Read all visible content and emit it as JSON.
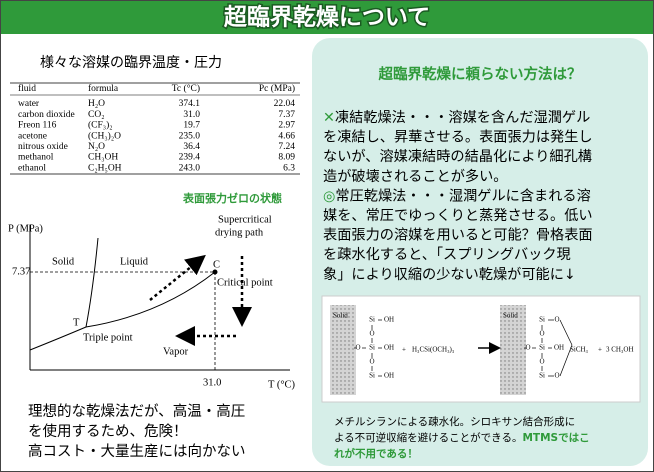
{
  "header": {
    "title": "超臨界乾燥について"
  },
  "left": {
    "subtitle": "様々な溶媒の臨界温度・圧力",
    "table": {
      "headers": [
        "fluid",
        "formula",
        "Tc (°C)",
        "Pc (MPa)"
      ],
      "rows": [
        [
          "water",
          "H₂O",
          "374.1",
          "22.04"
        ],
        [
          "carbon dioxide",
          "CO₂",
          "31.0",
          "7.37"
        ],
        [
          "Freon 116",
          "(CF₃)₂",
          "19.7",
          "2.97"
        ],
        [
          "acetone",
          "(CH₃)₂O",
          "235.0",
          "4.66"
        ],
        [
          "nitrous oxide",
          "N₂O",
          "36.4",
          "7.24"
        ],
        [
          "methanol",
          "CH₃OH",
          "239.4",
          "8.09"
        ],
        [
          "ethanol",
          "C₂H₅OH",
          "243.0",
          "6.3"
        ]
      ]
    },
    "diagram": {
      "caption": "表面張力ゼロの状態",
      "y_axis": "P (MPa)",
      "x_axis": "T (°C)",
      "pressure": "7.37",
      "temperature": "31.0",
      "solid": "Solid",
      "liquid": "Liquid",
      "vapor": "Vapor",
      "triple_mark": "T",
      "triple_point": "Triple point",
      "critical_mark": "C",
      "critical_point": "Critical point",
      "path": [
        "Supercritical",
        "drying path"
      ]
    },
    "note": [
      "理想的な乾燥法だが、高温・高圧",
      "を使用するため、危険！",
      "高コスト・大量生産には向かない"
    ]
  },
  "right": {
    "title": "超臨界乾燥に頼らない方法は？",
    "paragraphs": [
      {
        "marker": "✕",
        "lines": [
          "凍結乾燥法・・・溶媒を含んだ湿潤ゲル",
          "を凍結し、昇華させる。表面張力は発生し",
          "ないが、溶媒凍結時の結晶化により細孔構",
          "造が破壊されることが多い。"
        ]
      },
      {
        "marker": "◎",
        "lines": [
          "常圧乾燥法・・・湿潤ゲルに含まれる溶",
          "媒を、常圧でゆっくりと蒸発させる。低い",
          "表面張力の溶媒を用いると可能？骨格表面",
          "を疎水化すると、「スプリングバック現",
          "象」により収縮の少ない乾燥が可能に↓"
        ]
      }
    ],
    "figure": {
      "solid": "Solid",
      "si": "Si",
      "oh": "OH",
      "o": "O",
      "plus": "+",
      "reagent": "H₃CSi(OCH₃)₃",
      "methylsilyl": "SiCH₃",
      "product": "3 CH₃OH"
    },
    "caption": {
      "black": [
        "メチルシランによる疎水化。シロキサン結合形成に",
        "よる不可逆収縮を避けることができる。"
      ],
      "green": [
        "MTMSではこ",
        "れが不用である！"
      ]
    }
  }
}
